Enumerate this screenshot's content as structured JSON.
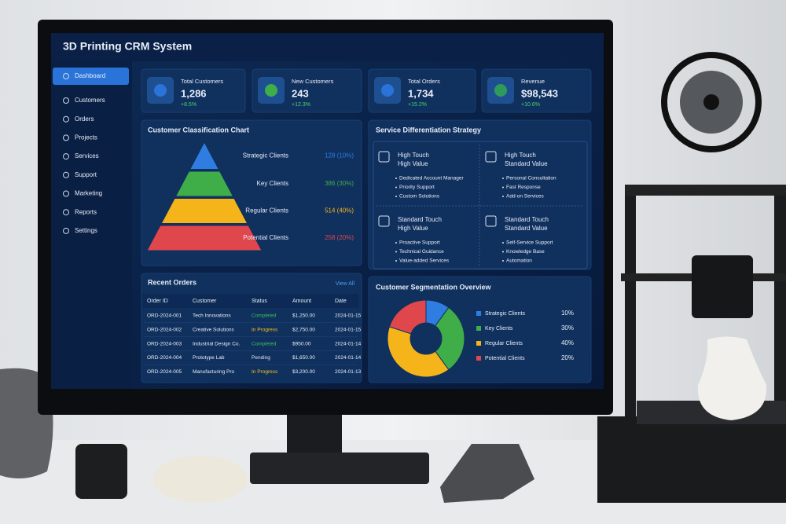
{
  "app_title": "3D Printing CRM System",
  "nav": [
    "Dashboard",
    "Customers",
    "Orders",
    "Projects",
    "Services",
    "Support",
    "Marketing",
    "Reports",
    "Settings"
  ],
  "kpis": [
    {
      "label": "Total Customers",
      "value": "1,286",
      "change": "+8.5%"
    },
    {
      "label": "New Customers",
      "value": "243",
      "change": "+12.3%"
    },
    {
      "label": "Total Orders",
      "value": "1,734",
      "change": "+15.2%"
    },
    {
      "label": "Revenue",
      "value": "$98,543",
      "change": "+10.6%"
    }
  ],
  "classification": {
    "title": "Customer Classification Chart",
    "tiers": [
      {
        "name": "Strategic Clients",
        "value": "128 (10%)",
        "color": "#2f7de1"
      },
      {
        "name": "Key Clients",
        "value": "386 (30%)",
        "color": "#3fae49"
      },
      {
        "name": "Regular Clients",
        "value": "514 (40%)",
        "color": "#f4b41a"
      },
      {
        "name": "Potential Clients",
        "value": "258 (20%)",
        "color": "#e0474c"
      }
    ]
  },
  "strategy": {
    "title": "Service Differentiation Strategy",
    "cells": [
      {
        "title": [
          "High Touch",
          "High Value"
        ],
        "items": [
          "Dedicated Account Manager",
          "Priority Support",
          "Custom Solutions"
        ]
      },
      {
        "title": [
          "High Touch",
          "Standard Value"
        ],
        "items": [
          "Personal Consultation",
          "Fast Response",
          "Add-on Services"
        ]
      },
      {
        "title": [
          "Standard Touch",
          "High Value"
        ],
        "items": [
          "Proactive Support",
          "Technical Guidance",
          "Value-added Services"
        ]
      },
      {
        "title": [
          "Standard Touch",
          "Standard Value"
        ],
        "items": [
          "Self-Service Support",
          "Knowledge Base",
          "Automation"
        ]
      }
    ]
  },
  "orders": {
    "title": "Recent Orders",
    "link": "View All",
    "columns": [
      "Order ID",
      "Customer",
      "Status",
      "Amount",
      "Date"
    ],
    "rows": [
      [
        "ORD-2024-001",
        "Tech Innovations",
        "Completed",
        "$1,250.00",
        "2024-01-15"
      ],
      [
        "ORD-2024-002",
        "Creative Solutions",
        "In Progress",
        "$2,750.00",
        "2024-01-15"
      ],
      [
        "ORD-2024-003",
        "Industrial Design Co.",
        "Completed",
        "$950.00",
        "2024-01-14"
      ],
      [
        "ORD-2024-004",
        "Prototype Lab",
        "Pending",
        "$1,650.00",
        "2024-01-14"
      ],
      [
        "ORD-2024-005",
        "Manufacturing Pro",
        "In Progress",
        "$3,200.00",
        "2024-01-13"
      ]
    ],
    "status_colors": [
      "#3fc25a",
      "#f4c21a",
      "#3fc25a",
      "#dfe6f2",
      "#f4c21a"
    ]
  },
  "segmentation": {
    "type": "pie",
    "title": "Customer Segmentation Overview",
    "categories": [
      "Strategic Clients",
      "Key Clients",
      "Regular Clients",
      "Potential Clients"
    ],
    "values": [
      10,
      30,
      40,
      20
    ],
    "value_labels": [
      "10%",
      "30%",
      "40%",
      "20%"
    ],
    "colors": [
      "#2f7de1",
      "#3fae49",
      "#f4b41a",
      "#e0474c"
    ]
  }
}
